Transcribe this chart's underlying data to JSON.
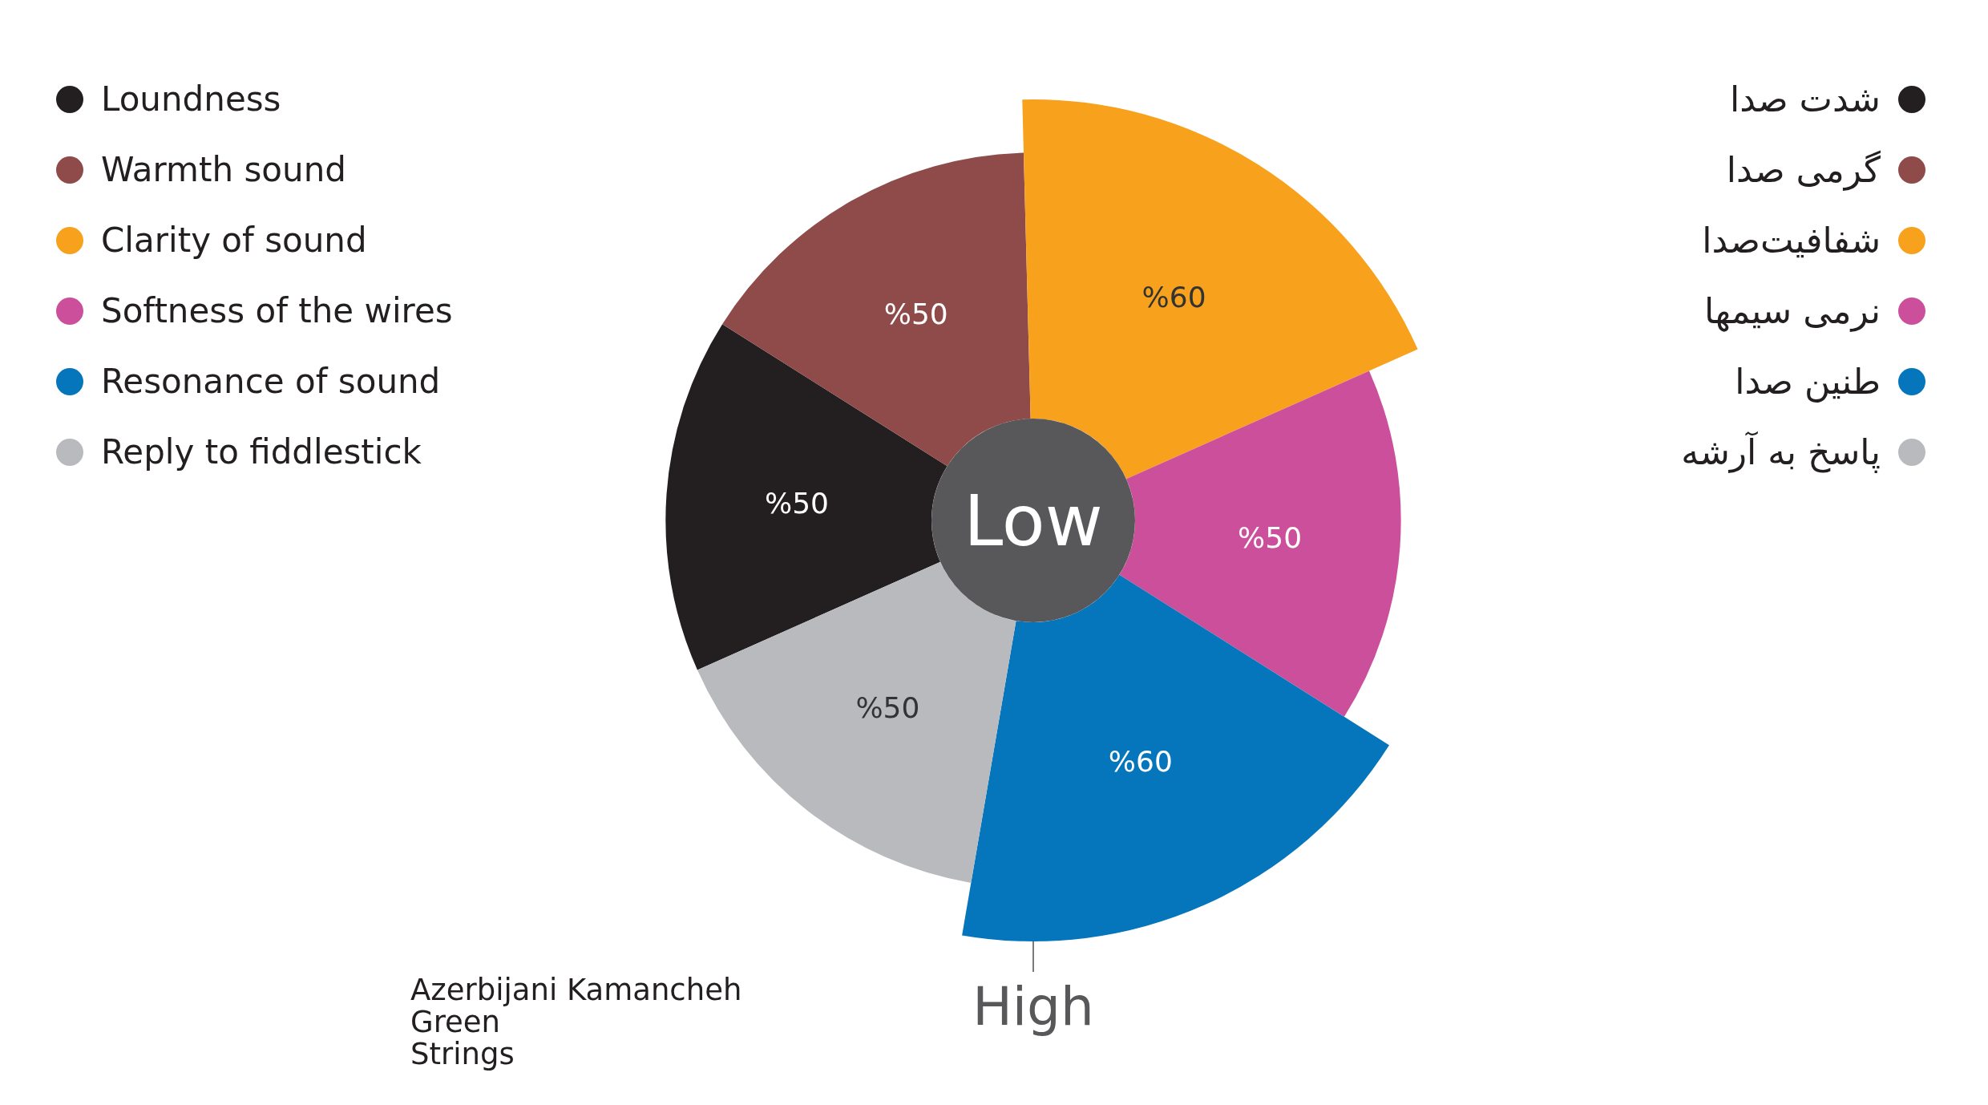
{
  "chart_data": {
    "type": "donut",
    "subtitle": "Azerbijani Kamancheh\nGreen\nStrings",
    "categories": [
      "Loundness",
      "Warmth sound",
      "Clarity of sound",
      "Softness of the wires",
      "Resonance of sound",
      "Reply to fiddlestick"
    ],
    "values": [
      50,
      50,
      60,
      50,
      60,
      50
    ],
    "value_labels": [
      "%50",
      "%50",
      "%60",
      "%50",
      "%60",
      "%50"
    ],
    "colors": [
      "#231f20",
      "#8f4b4a",
      "#f7a11d",
      "#cc4f9c",
      "#0575bc",
      "#b9babd"
    ],
    "legend": "top left",
    "annotations": [
      "شدت صدا",
      "گرمی صدا",
      "شفافیت‌صدا",
      "نرمی سیمها",
      "طنین صدا",
      "پاسخ به آرشه",
      "Low",
      "High"
    ]
  }
}
